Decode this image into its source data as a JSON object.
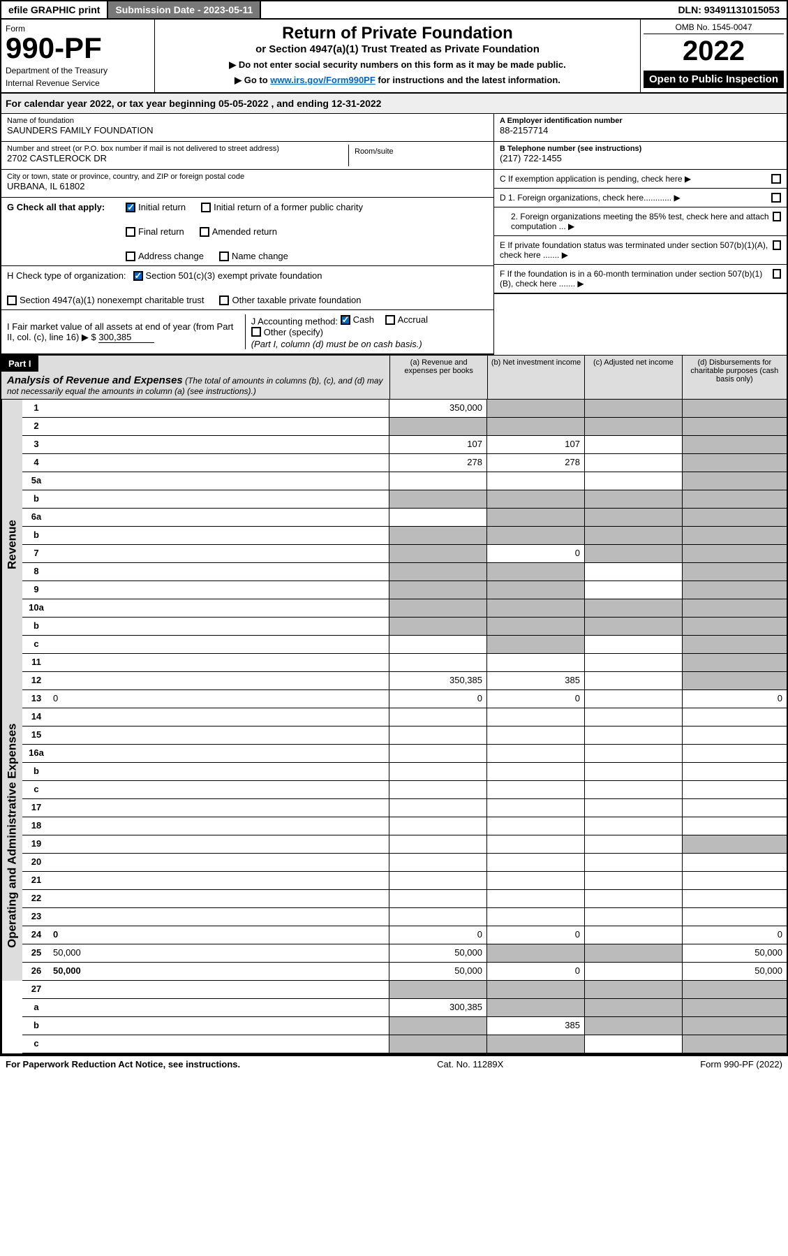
{
  "topbar": {
    "efile": "efile GRAPHIC print",
    "submission_label": "Submission Date - 2023-05-11",
    "dln": "DLN: 93491131015053"
  },
  "header": {
    "form_label": "Form",
    "form_number": "990-PF",
    "dept1": "Department of the Treasury",
    "dept2": "Internal Revenue Service",
    "title": "Return of Private Foundation",
    "subtitle": "or Section 4947(a)(1) Trust Treated as Private Foundation",
    "note1": "▶ Do not enter social security numbers on this form as it may be made public.",
    "note2_pre": "▶ Go to ",
    "note2_link": "www.irs.gov/Form990PF",
    "note2_post": " for instructions and the latest information.",
    "omb": "OMB No. 1545-0047",
    "year": "2022",
    "open_public": "Open to Public Inspection"
  },
  "calyear": "For calendar year 2022, or tax year beginning 05-05-2022                    , and ending 12-31-2022",
  "entity": {
    "name_label": "Name of foundation",
    "name": "SAUNDERS FAMILY FOUNDATION",
    "addr_label": "Number and street (or P.O. box number if mail is not delivered to street address)",
    "addr": "2702 CASTLEROCK DR",
    "room_label": "Room/suite",
    "city_label": "City or town, state or province, country, and ZIP or foreign postal code",
    "city": "URBANA, IL 61802",
    "ein_label": "A Employer identification number",
    "ein": "88-2157714",
    "phone_label": "B Telephone number (see instructions)",
    "phone": "(217) 722-1455",
    "c_label": "C If exemption application is pending, check here ▶"
  },
  "checks": {
    "g_label": "G Check all that apply:",
    "initial": "Initial return",
    "initial_former": "Initial return of a former public charity",
    "final": "Final return",
    "amended": "Amended return",
    "addr_change": "Address change",
    "name_change": "Name change",
    "h_label": "H Check type of organization:",
    "h1": "Section 501(c)(3) exempt private foundation",
    "h2": "Section 4947(a)(1) nonexempt charitable trust",
    "h3": "Other taxable private foundation",
    "i_label": "I Fair market value of all assets at end of year (from Part II, col. (c), line 16) ▶ $",
    "i_val": "300,385",
    "j_label": "J Accounting method:",
    "j_cash": "Cash",
    "j_accrual": "Accrual",
    "j_other": "Other (specify)",
    "j_note": "(Part I, column (d) must be on cash basis.)",
    "d1": "D 1. Foreign organizations, check here............ ▶",
    "d2": "2. Foreign organizations meeting the 85% test, check here and attach computation ... ▶",
    "e": "E  If private foundation status was terminated under section 507(b)(1)(A), check here ....... ▶",
    "f": "F  If the foundation is in a 60-month termination under section 507(b)(1)(B), check here ....... ▶"
  },
  "part1": {
    "header": "Part I",
    "title": "Analysis of Revenue and Expenses",
    "title_note": " (The total of amounts in columns (b), (c), and (d) may not necessarily equal the amounts in column (a) (see instructions).)",
    "col_a": "(a)    Revenue and expenses per books",
    "col_b": "(b)    Net investment income",
    "col_c": "(c)    Adjusted net income",
    "col_d": "(d)  Disbursements for charitable purposes (cash basis only)"
  },
  "side": {
    "revenue": "Revenue",
    "expenses": "Operating and Administrative Expenses"
  },
  "rows": [
    {
      "n": "1",
      "d": "",
      "a": "350,000",
      "b": "",
      "c": "",
      "gb": true,
      "gc": true,
      "gd": true
    },
    {
      "n": "2",
      "d": "",
      "a": "",
      "b": "",
      "c": "",
      "ga": true,
      "gb": true,
      "gc": true,
      "gd": true
    },
    {
      "n": "3",
      "d": "",
      "a": "107",
      "b": "107",
      "c": "",
      "gd": true
    },
    {
      "n": "4",
      "d": "",
      "a": "278",
      "b": "278",
      "c": "",
      "gd": true
    },
    {
      "n": "5a",
      "d": "",
      "a": "",
      "b": "",
      "c": "",
      "gd": true
    },
    {
      "n": "b",
      "d": "",
      "a": "",
      "b": "",
      "c": "",
      "ga": true,
      "gb": true,
      "gc": true,
      "gd": true
    },
    {
      "n": "6a",
      "d": "",
      "a": "",
      "b": "",
      "c": "",
      "gb": true,
      "gc": true,
      "gd": true
    },
    {
      "n": "b",
      "d": "",
      "a": "",
      "b": "",
      "c": "",
      "ga": true,
      "gb": true,
      "gc": true,
      "gd": true
    },
    {
      "n": "7",
      "d": "",
      "a": "",
      "b": "0",
      "c": "",
      "ga": true,
      "gc": true,
      "gd": true
    },
    {
      "n": "8",
      "d": "",
      "a": "",
      "b": "",
      "c": "",
      "ga": true,
      "gb": true,
      "gd": true
    },
    {
      "n": "9",
      "d": "",
      "a": "",
      "b": "",
      "c": "",
      "ga": true,
      "gb": true,
      "gd": true
    },
    {
      "n": "10a",
      "d": "",
      "a": "",
      "b": "",
      "c": "",
      "ga": true,
      "gb": true,
      "gc": true,
      "gd": true
    },
    {
      "n": "b",
      "d": "",
      "a": "",
      "b": "",
      "c": "",
      "ga": true,
      "gb": true,
      "gc": true,
      "gd": true
    },
    {
      "n": "c",
      "d": "",
      "a": "",
      "b": "",
      "c": "",
      "gb": true,
      "gd": true
    },
    {
      "n": "11",
      "d": "",
      "a": "",
      "b": "",
      "c": "",
      "gd": true
    },
    {
      "n": "12",
      "d": "",
      "a": "350,385",
      "b": "385",
      "c": "",
      "gd": true,
      "bold": true
    }
  ],
  "exp_rows": [
    {
      "n": "13",
      "d": "0",
      "a": "0",
      "b": "0",
      "c": ""
    },
    {
      "n": "14",
      "d": "",
      "a": "",
      "b": "",
      "c": ""
    },
    {
      "n": "15",
      "d": "",
      "a": "",
      "b": "",
      "c": ""
    },
    {
      "n": "16a",
      "d": "",
      "a": "",
      "b": "",
      "c": ""
    },
    {
      "n": "b",
      "d": "",
      "a": "",
      "b": "",
      "c": ""
    },
    {
      "n": "c",
      "d": "",
      "a": "",
      "b": "",
      "c": ""
    },
    {
      "n": "17",
      "d": "",
      "a": "",
      "b": "",
      "c": ""
    },
    {
      "n": "18",
      "d": "",
      "a": "",
      "b": "",
      "c": ""
    },
    {
      "n": "19",
      "d": "",
      "a": "",
      "b": "",
      "c": "",
      "gd": true
    },
    {
      "n": "20",
      "d": "",
      "a": "",
      "b": "",
      "c": ""
    },
    {
      "n": "21",
      "d": "",
      "a": "",
      "b": "",
      "c": ""
    },
    {
      "n": "22",
      "d": "",
      "a": "",
      "b": "",
      "c": ""
    },
    {
      "n": "23",
      "d": "",
      "a": "",
      "b": "",
      "c": ""
    },
    {
      "n": "24",
      "d": "0",
      "a": "0",
      "b": "0",
      "c": "",
      "bold": true
    },
    {
      "n": "25",
      "d": "50,000",
      "a": "50,000",
      "b": "",
      "c": "",
      "gb": true,
      "gc": true
    },
    {
      "n": "26",
      "d": "50,000",
      "a": "50,000",
      "b": "0",
      "c": "",
      "bold": true
    }
  ],
  "sub_rows": [
    {
      "n": "27",
      "d": "",
      "a": "",
      "b": "",
      "c": "",
      "ga": true,
      "gb": true,
      "gc": true,
      "gd": true
    },
    {
      "n": "a",
      "d": "",
      "a": "300,385",
      "b": "",
      "c": "",
      "bold": true,
      "gb": true,
      "gc": true,
      "gd": true
    },
    {
      "n": "b",
      "d": "",
      "a": "",
      "b": "385",
      "c": "",
      "bold": true,
      "ga": true,
      "gc": true,
      "gd": true
    },
    {
      "n": "c",
      "d": "",
      "a": "",
      "b": "",
      "c": "",
      "bold": true,
      "ga": true,
      "gb": true,
      "gd": true
    }
  ],
  "footer": {
    "left": "For Paperwork Reduction Act Notice, see instructions.",
    "mid": "Cat. No. 11289X",
    "right": "Form 990-PF (2022)"
  }
}
